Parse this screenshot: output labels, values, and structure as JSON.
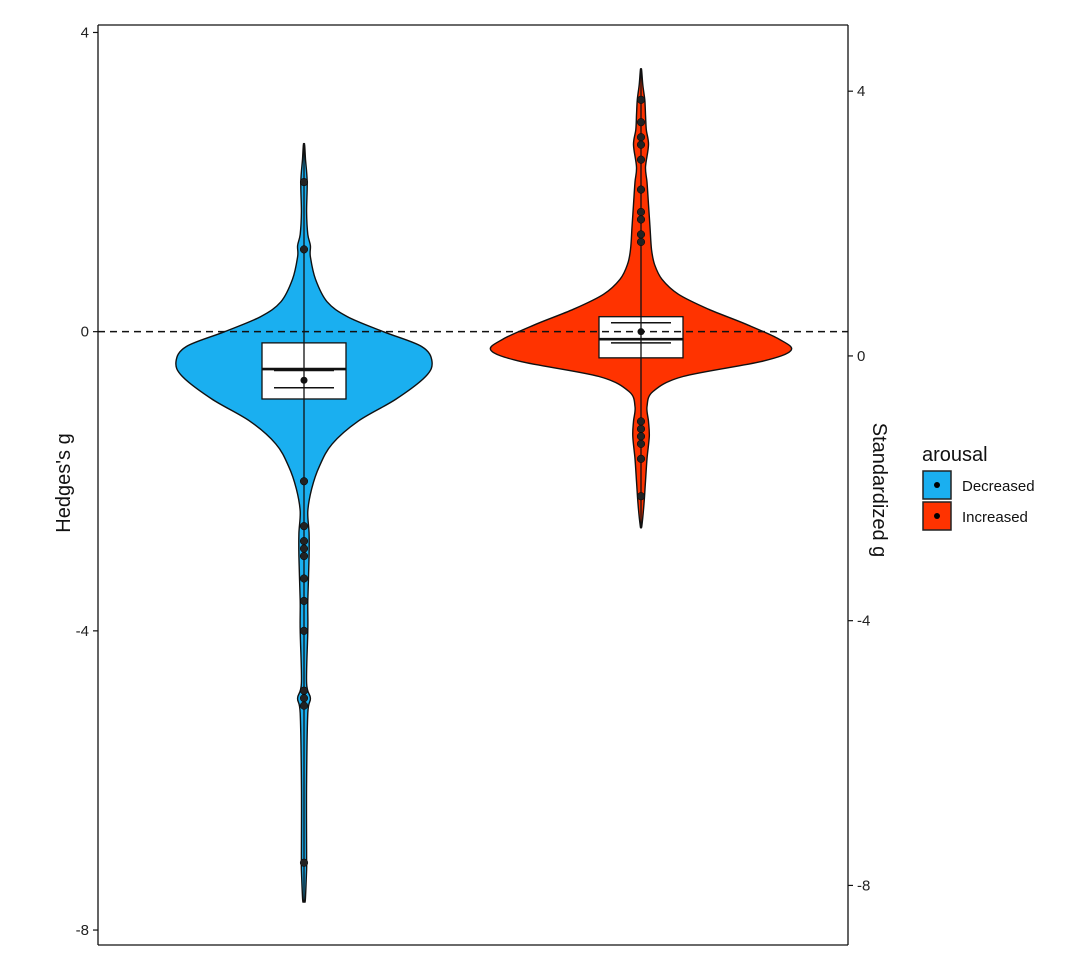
{
  "chart_data": {
    "type": "violin",
    "xlabel": "",
    "ylabel_left": "Hedges's g",
    "ylabel_right": "Standardized g",
    "left_axis": {
      "ticks": [
        4,
        0,
        -4,
        -8
      ],
      "ylim": [
        -8.2,
        4.1
      ]
    },
    "right_axis": {
      "ticks": [
        4,
        0,
        -4,
        -8
      ],
      "ylim": [
        -8.9,
        5.0
      ]
    },
    "reference_line": {
      "y": 0,
      "style": "dashed"
    },
    "grid": false,
    "legend": {
      "title": "arousal",
      "position": "right",
      "entries": [
        {
          "label": "Decreased",
          "color": "#1AAFF0"
        },
        {
          "label": "Increased",
          "color": "#FF3300"
        }
      ]
    },
    "series": [
      {
        "name": "Decreased",
        "color": "#1AAFF0",
        "range": [
          -7.6,
          2.5
        ],
        "box": {
          "q1": -0.9,
          "median": -0.5,
          "q3": -0.15,
          "whisker_low": -2.0,
          "whisker_high": 0.9
        },
        "mean": -0.65,
        "mean_ci": [
          -0.75,
          -0.52
        ],
        "outliers": [
          2.0,
          1.1,
          -2.0,
          -2.6,
          -2.8,
          -2.9,
          -3.0,
          -3.3,
          -3.6,
          -4.0,
          -4.8,
          -4.9,
          -5.0,
          -7.1
        ],
        "density": [
          [
            -7.6,
            0.01
          ],
          [
            -7.2,
            0.02
          ],
          [
            -7.0,
            0.02
          ],
          [
            -6.0,
            0.02
          ],
          [
            -5.1,
            0.03
          ],
          [
            -4.9,
            0.05
          ],
          [
            -4.7,
            0.02
          ],
          [
            -4.0,
            0.03
          ],
          [
            -3.6,
            0.03
          ],
          [
            -3.0,
            0.04
          ],
          [
            -2.7,
            0.04
          ],
          [
            -2.4,
            0.03
          ],
          [
            -2.1,
            0.06
          ],
          [
            -1.8,
            0.12
          ],
          [
            -1.5,
            0.22
          ],
          [
            -1.2,
            0.42
          ],
          [
            -0.9,
            0.72
          ],
          [
            -0.6,
            0.95
          ],
          [
            -0.4,
            1.0
          ],
          [
            -0.2,
            0.92
          ],
          [
            0.0,
            0.62
          ],
          [
            0.2,
            0.34
          ],
          [
            0.4,
            0.18
          ],
          [
            0.7,
            0.09
          ],
          [
            1.0,
            0.05
          ],
          [
            1.15,
            0.05
          ],
          [
            1.3,
            0.03
          ],
          [
            1.6,
            0.02
          ],
          [
            2.0,
            0.025
          ],
          [
            2.3,
            0.012
          ],
          [
            2.5,
            0.005
          ]
        ]
      },
      {
        "name": "Increased",
        "color": "#FF3300",
        "range": [
          -2.6,
          3.5
        ],
        "box": {
          "q1": -0.35,
          "median": -0.1,
          "q3": 0.2,
          "whisker_low": -0.9,
          "whisker_high": 1.0
        },
        "mean": 0.0,
        "mean_ci": [
          -0.15,
          0.12
        ],
        "outliers": [
          3.1,
          2.8,
          2.6,
          2.5,
          2.3,
          1.9,
          1.6,
          1.5,
          1.3,
          1.2,
          -1.2,
          -1.3,
          -1.4,
          -1.5,
          -1.7,
          -2.2
        ],
        "density": [
          [
            -2.6,
            0.005
          ],
          [
            -2.3,
            0.02
          ],
          [
            -2.0,
            0.03
          ],
          [
            -1.7,
            0.04
          ],
          [
            -1.4,
            0.055
          ],
          [
            -1.2,
            0.05
          ],
          [
            -1.0,
            0.04
          ],
          [
            -0.8,
            0.08
          ],
          [
            -0.6,
            0.28
          ],
          [
            -0.4,
            0.8
          ],
          [
            -0.25,
            1.0
          ],
          [
            -0.1,
            0.92
          ],
          [
            0.1,
            0.7
          ],
          [
            0.3,
            0.45
          ],
          [
            0.5,
            0.25
          ],
          [
            0.7,
            0.14
          ],
          [
            0.9,
            0.09
          ],
          [
            1.1,
            0.07
          ],
          [
            1.4,
            0.06
          ],
          [
            1.7,
            0.05
          ],
          [
            2.0,
            0.04
          ],
          [
            2.2,
            0.03
          ],
          [
            2.5,
            0.05
          ],
          [
            2.7,
            0.035
          ],
          [
            2.9,
            0.03
          ],
          [
            3.1,
            0.025
          ],
          [
            3.3,
            0.012
          ],
          [
            3.5,
            0.004
          ]
        ]
      }
    ]
  }
}
